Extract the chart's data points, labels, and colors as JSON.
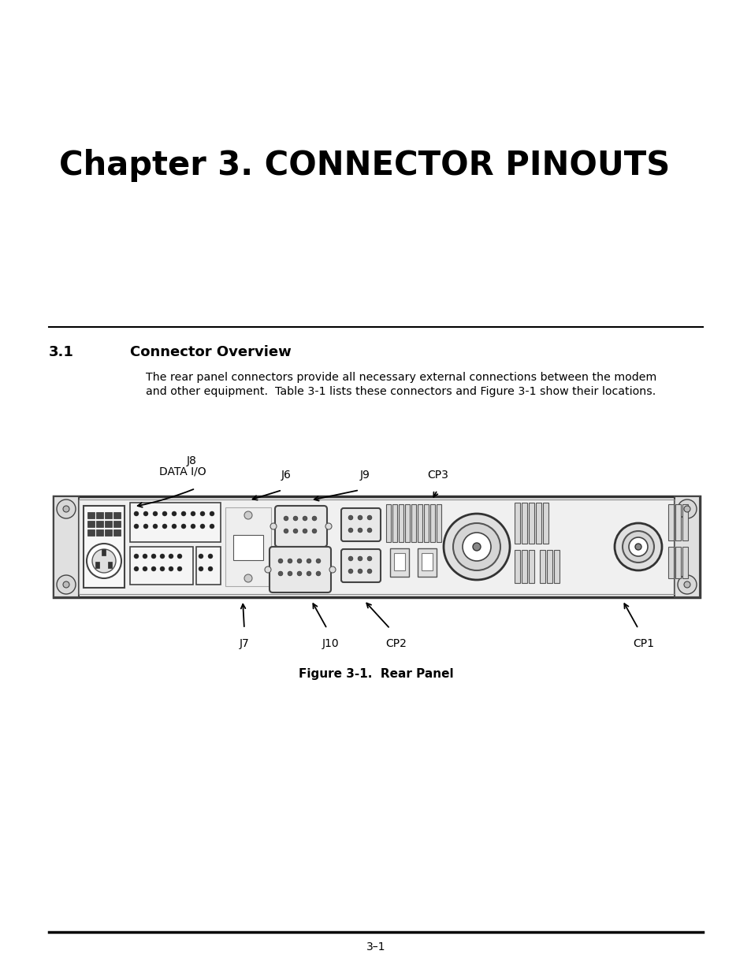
{
  "title": "Chapter 3. CONNECTOR PINOUTS",
  "section": "3.1",
  "section_title": "Connector Overview",
  "body_text_line1": "The rear panel connectors provide all necessary external connections between the modem",
  "body_text_line2": "and other equipment.  Table 3-1 lists these connectors and Figure 3-1 show their locations.",
  "figure_caption": "Figure 3-1.  Rear Panel",
  "page_number": "3–1",
  "bg_color": "#ffffff",
  "text_color": "#000000"
}
